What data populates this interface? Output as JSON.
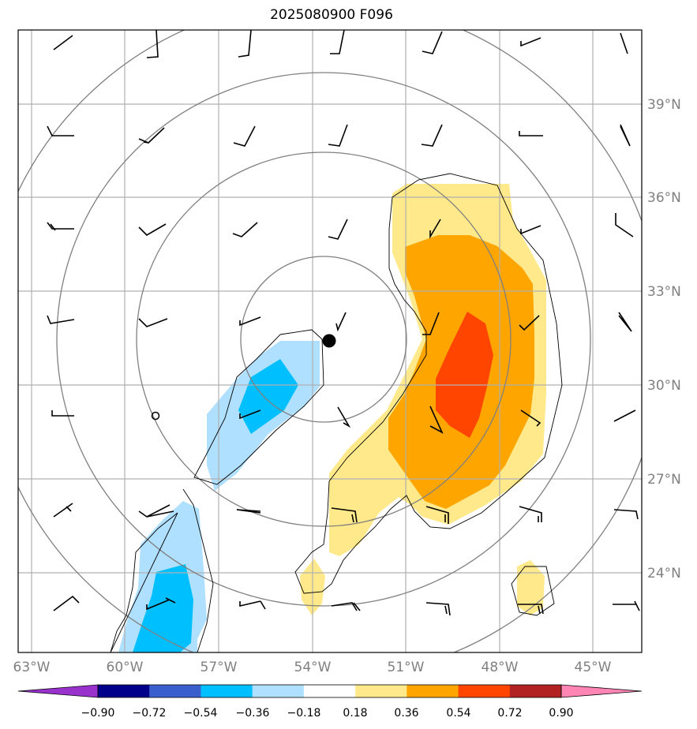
{
  "title": "2025080900 F096",
  "map": {
    "lon_ticks": [
      "63°W",
      "60°W",
      "57°W",
      "54°W",
      "51°W",
      "48°W",
      "45°W"
    ],
    "lat_ticks": [
      "39°N",
      "36°N",
      "33°N",
      "30°N",
      "27°N",
      "24°N"
    ],
    "storm_center_marker": "filled-circle",
    "secondary_marker": "open-circle"
  },
  "colorbar": {
    "levels": [
      "−0.90",
      "−0.72",
      "−0.54",
      "−0.36",
      "−0.18",
      "0.18",
      "0.36",
      "0.54",
      "0.72",
      "0.90"
    ],
    "colors": [
      "#9932cc",
      "#00008b",
      "#3a5fcd",
      "#00bfff",
      "#b0e0ff",
      "#ffffff",
      "#ffe98a",
      "#ffa500",
      "#ff4500",
      "#b22222",
      "#ff85b5"
    ]
  },
  "colors": {
    "grid": "#b0b0b0",
    "contour": "#808080",
    "outline": "#000000"
  }
}
